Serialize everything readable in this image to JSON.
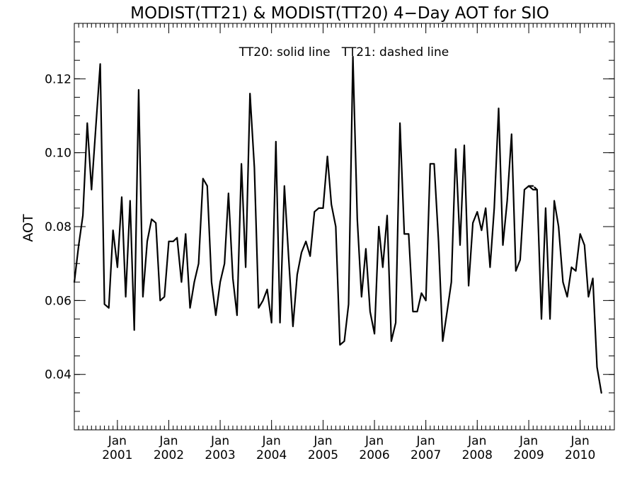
{
  "chart_data": {
    "type": "line",
    "title": "MODIST(TT21) & MODIST(TT20) 4−Day AOT for SIO",
    "annotation": "TT20: solid line   TT21: dashed line",
    "ylabel": "AOT",
    "xlabel": "",
    "xlim": [
      "2000-03-01",
      "2010-09-01"
    ],
    "ylim": [
      0.025,
      0.135
    ],
    "y_ticks": [
      "0.04",
      "0.06",
      "0.08",
      "0.10",
      "0.12"
    ],
    "x_tick_labels": [
      {
        "month": "Jan",
        "year": "2001",
        "date": "2001-01-01"
      },
      {
        "month": "Jan",
        "year": "2002",
        "date": "2002-01-01"
      },
      {
        "month": "Jan",
        "year": "2003",
        "date": "2003-01-01"
      },
      {
        "month": "Jan",
        "year": "2004",
        "date": "2004-01-01"
      },
      {
        "month": "Jan",
        "year": "2005",
        "date": "2005-01-01"
      },
      {
        "month": "Jan",
        "year": "2006",
        "date": "2006-01-01"
      },
      {
        "month": "Jan",
        "year": "2007",
        "date": "2007-01-01"
      },
      {
        "month": "Jan",
        "year": "2008",
        "date": "2008-01-01"
      },
      {
        "month": "Jan",
        "year": "2009",
        "date": "2009-01-01"
      },
      {
        "month": "Jan",
        "year": "2010",
        "date": "2010-01-01"
      }
    ],
    "grid": false,
    "series": [
      {
        "style": "solid",
        "color": "#000000",
        "points": [
          [
            "2000-03-01",
            0.065
          ],
          [
            "2000-04-01",
            0.075
          ],
          [
            "2000-05-01",
            0.083
          ],
          [
            "2000-06-01",
            0.108
          ],
          [
            "2000-07-01",
            0.09
          ],
          [
            "2000-08-01",
            0.107
          ],
          [
            "2000-09-01",
            0.124
          ],
          [
            "2000-10-01",
            0.059
          ],
          [
            "2000-11-01",
            0.058
          ],
          [
            "2000-12-01",
            0.079
          ],
          [
            "2001-01-01",
            0.069
          ],
          [
            "2001-02-01",
            0.088
          ],
          [
            "2001-03-01",
            0.061
          ],
          [
            "2001-04-01",
            0.087
          ],
          [
            "2001-05-01",
            0.052
          ],
          [
            "2001-06-01",
            0.117
          ],
          [
            "2001-07-01",
            0.061
          ],
          [
            "2001-08-01",
            0.076
          ],
          [
            "2001-09-01",
            0.082
          ],
          [
            "2001-10-01",
            0.081
          ],
          [
            "2001-11-01",
            0.06
          ],
          [
            "2001-12-01",
            0.061
          ],
          [
            "2002-01-01",
            0.076
          ],
          [
            "2002-02-01",
            0.076
          ],
          [
            "2002-03-01",
            0.077
          ],
          [
            "2002-04-01",
            0.065
          ],
          [
            "2002-05-01",
            0.078
          ],
          [
            "2002-06-01",
            0.058
          ],
          [
            "2002-07-01",
            0.065
          ],
          [
            "2002-08-01",
            0.07
          ],
          [
            "2002-09-01",
            0.093
          ],
          [
            "2002-10-01",
            0.091
          ],
          [
            "2002-11-01",
            0.065
          ],
          [
            "2002-12-01",
            0.056
          ],
          [
            "2003-01-01",
            0.065
          ],
          [
            "2003-02-01",
            0.07
          ],
          [
            "2003-03-01",
            0.089
          ],
          [
            "2003-04-01",
            0.066
          ],
          [
            "2003-05-01",
            0.056
          ],
          [
            "2003-06-01",
            0.097
          ],
          [
            "2003-07-01",
            0.069
          ],
          [
            "2003-08-01",
            0.116
          ],
          [
            "2003-09-01",
            0.096
          ],
          [
            "2003-10-01",
            0.058
          ],
          [
            "2003-11-01",
            0.06
          ],
          [
            "2003-12-01",
            0.063
          ],
          [
            "2004-01-01",
            0.054
          ],
          [
            "2004-02-01",
            0.103
          ],
          [
            "2004-03-01",
            0.054
          ],
          [
            "2004-04-01",
            0.091
          ],
          [
            "2004-05-01",
            0.072
          ],
          [
            "2004-06-01",
            0.053
          ],
          [
            "2004-07-01",
            0.067
          ],
          [
            "2004-08-01",
            0.073
          ],
          [
            "2004-09-01",
            0.076
          ],
          [
            "2004-10-01",
            0.072
          ],
          [
            "2004-11-01",
            0.084
          ],
          [
            "2004-12-01",
            0.085
          ],
          [
            "2005-01-01",
            0.085
          ],
          [
            "2005-02-01",
            0.099
          ],
          [
            "2005-03-01",
            0.086
          ],
          [
            "2005-04-01",
            0.08
          ],
          [
            "2005-05-01",
            0.048
          ],
          [
            "2005-06-01",
            0.049
          ],
          [
            "2005-07-01",
            0.059
          ],
          [
            "2005-08-01",
            0.126
          ],
          [
            "2005-09-01",
            0.082
          ],
          [
            "2005-10-01",
            0.061
          ],
          [
            "2005-11-01",
            0.074
          ],
          [
            "2005-12-01",
            0.057
          ],
          [
            "2006-01-01",
            0.051
          ],
          [
            "2006-02-01",
            0.08
          ],
          [
            "2006-03-01",
            0.069
          ],
          [
            "2006-04-01",
            0.083
          ],
          [
            "2006-05-01",
            0.049
          ],
          [
            "2006-06-01",
            0.054
          ],
          [
            "2006-07-01",
            0.108
          ],
          [
            "2006-08-01",
            0.078
          ],
          [
            "2006-09-01",
            0.078
          ],
          [
            "2006-10-01",
            0.057
          ],
          [
            "2006-11-01",
            0.057
          ],
          [
            "2006-12-01",
            0.062
          ],
          [
            "2007-01-01",
            0.06
          ],
          [
            "2007-02-01",
            0.097
          ],
          [
            "2007-03-01",
            0.097
          ],
          [
            "2007-04-01",
            0.076
          ],
          [
            "2007-05-01",
            0.049
          ],
          [
            "2007-06-01",
            0.057
          ],
          [
            "2007-07-01",
            0.065
          ],
          [
            "2007-08-01",
            0.101
          ],
          [
            "2007-09-01",
            0.075
          ],
          [
            "2007-10-01",
            0.102
          ],
          [
            "2007-11-01",
            0.064
          ],
          [
            "2007-12-01",
            0.081
          ],
          [
            "2008-01-01",
            0.084
          ],
          [
            "2008-02-01",
            0.079
          ],
          [
            "2008-03-01",
            0.085
          ],
          [
            "2008-04-01",
            0.069
          ],
          [
            "2008-05-01",
            0.085
          ],
          [
            "2008-06-01",
            0.112
          ],
          [
            "2008-07-01",
            0.075
          ],
          [
            "2008-08-01",
            0.087
          ],
          [
            "2008-09-01",
            0.105
          ],
          [
            "2008-10-01",
            0.068
          ],
          [
            "2008-11-01",
            0.071
          ],
          [
            "2008-12-01",
            0.09
          ],
          [
            "2009-01-01",
            0.091
          ],
          [
            "2009-02-01",
            0.09
          ],
          [
            "2009-03-01",
            0.09
          ],
          [
            "2009-04-01",
            0.055
          ],
          [
            "2009-05-01",
            0.085
          ],
          [
            "2009-06-01",
            0.055
          ],
          [
            "2009-07-01",
            0.087
          ],
          [
            "2009-08-01",
            0.08
          ],
          [
            "2009-09-01",
            0.065
          ],
          [
            "2009-10-01",
            0.061
          ],
          [
            "2009-11-01",
            0.069
          ],
          [
            "2009-12-01",
            0.068
          ],
          [
            "2010-01-01",
            0.078
          ],
          [
            "2010-02-01",
            0.075
          ],
          [
            "2010-03-01",
            0.061
          ],
          [
            "2010-04-01",
            0.066
          ],
          [
            "2010-05-01",
            0.042
          ],
          [
            "2010-06-01",
            0.035
          ]
        ]
      },
      {
        "style": "dashed",
        "color": "#000000",
        "points": [
          [
            "2009-01-01",
            0.091
          ],
          [
            "2009-02-01",
            0.091
          ],
          [
            "2009-03-01",
            0.09
          ]
        ]
      }
    ]
  }
}
